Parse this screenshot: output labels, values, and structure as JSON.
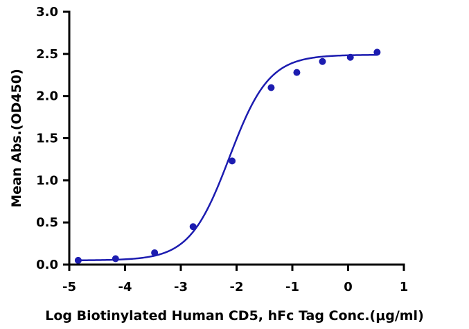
{
  "chart_data": {
    "type": "scatter",
    "xlabel": "Log Biotinylated Human CD5, hFc Tag Conc.(μg/ml)",
    "ylabel": "Mean Abs.(OD450)",
    "xlim": [
      -5,
      1
    ],
    "ylim": [
      0,
      3
    ],
    "x_ticks": [
      -5,
      -4,
      -3,
      -2,
      -1,
      0,
      1
    ],
    "y_ticks": [
      0,
      0.5,
      1,
      1.5,
      2,
      2.5,
      3
    ],
    "x_tick_labels": [
      "-5",
      "-4",
      "-3",
      "-2",
      "-1",
      "0",
      "1"
    ],
    "y_tick_labels": [
      "0.0",
      "0.5",
      "1.0",
      "1.5",
      "2.0",
      "2.5",
      "3.0"
    ],
    "grid": false,
    "series_color": "#1c1cb0",
    "points": [
      {
        "x": -4.84,
        "y": 0.05
      },
      {
        "x": -4.17,
        "y": 0.07
      },
      {
        "x": -3.47,
        "y": 0.14
      },
      {
        "x": -2.78,
        "y": 0.45
      },
      {
        "x": -2.08,
        "y": 1.23
      },
      {
        "x": -1.38,
        "y": 2.1
      },
      {
        "x": -0.92,
        "y": 2.28
      },
      {
        "x": -0.46,
        "y": 2.41
      },
      {
        "x": 0.04,
        "y": 2.46
      },
      {
        "x": 0.52,
        "y": 2.52
      }
    ],
    "fit": {
      "model": "4PL",
      "bottom": 0.05,
      "top": 2.49,
      "log_ec50": -2.13,
      "hill_slope": 1.22,
      "x_range": [
        -4.84,
        0.52
      ]
    }
  }
}
